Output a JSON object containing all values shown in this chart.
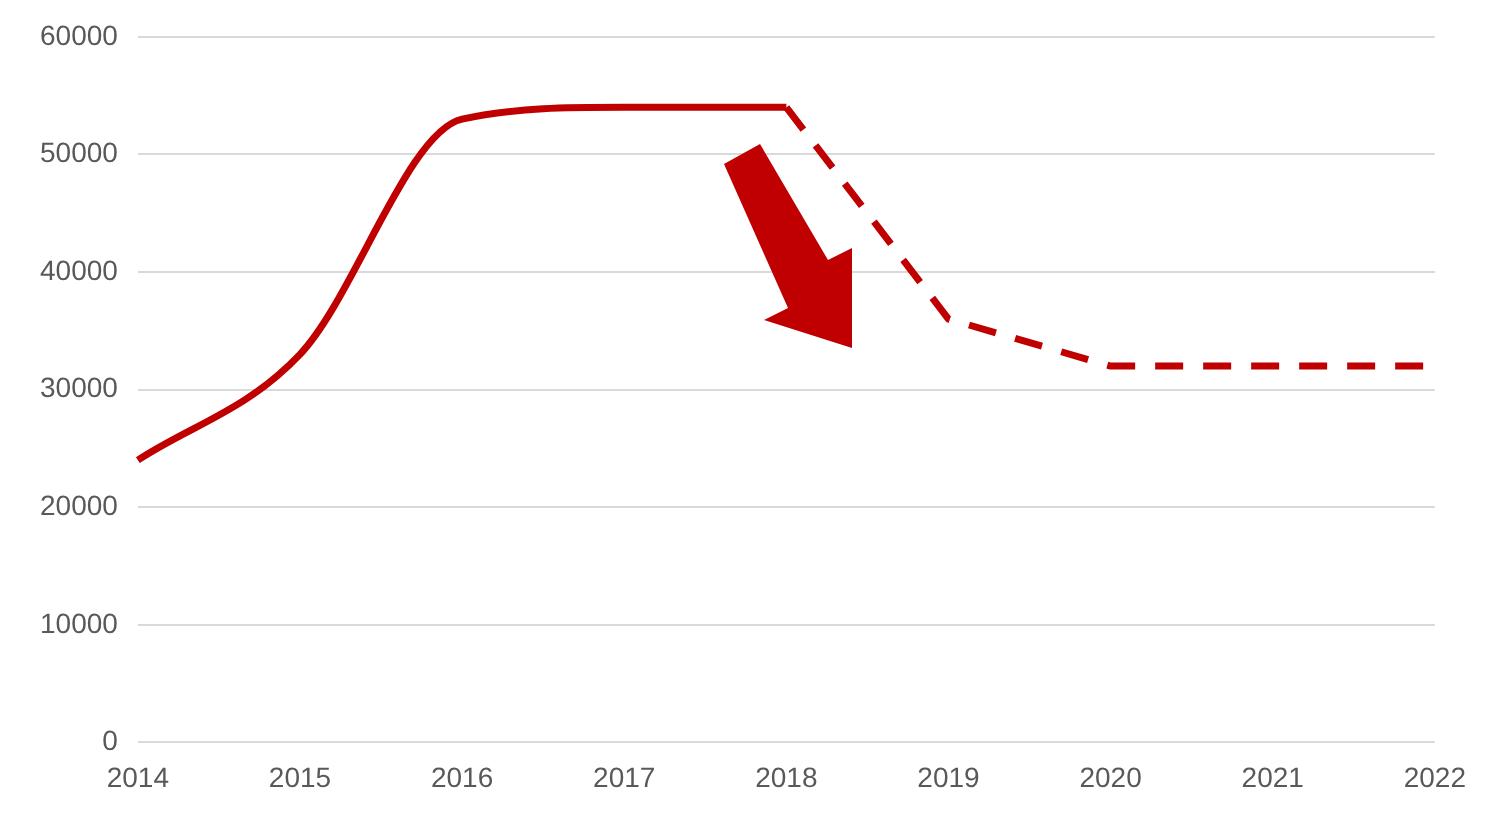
{
  "chart_data": {
    "type": "line",
    "categories": [
      "2014",
      "2015",
      "2016",
      "2017",
      "2018",
      "2019",
      "2020",
      "2021",
      "2022"
    ],
    "series": [
      {
        "color": "#c00000",
        "line_style": "solid",
        "values": [
          24000,
          33000,
          53000,
          54000,
          54000,
          null,
          null,
          null,
          null
        ]
      },
      {
        "color": "#c00000",
        "line_style": "dashed",
        "values": [
          null,
          null,
          null,
          null,
          54000,
          36000,
          32000,
          32000,
          32000
        ]
      }
    ],
    "ylim": [
      0,
      60000
    ],
    "yticks": [
      0,
      10000,
      20000,
      30000,
      40000,
      50000,
      60000
    ],
    "grid": "y",
    "legend": false,
    "marker": "none"
  }
}
